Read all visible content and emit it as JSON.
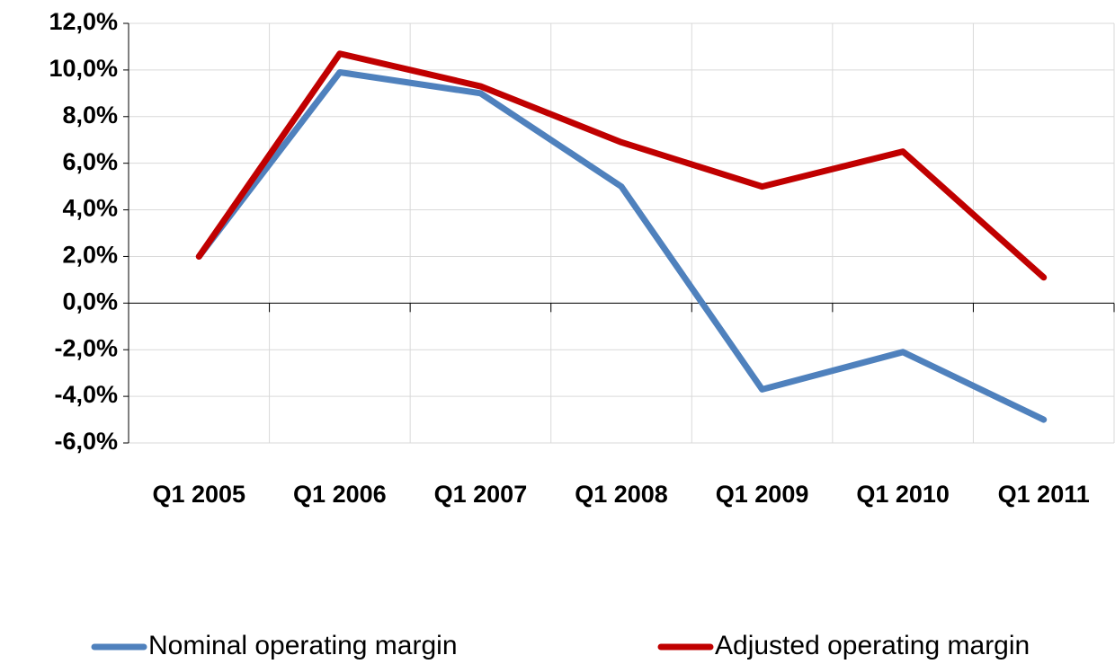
{
  "chart_data": {
    "type": "line",
    "categories": [
      "Q1 2005",
      "Q1 2006",
      "Q1 2007",
      "Q1 2008",
      "Q1 2009",
      "Q1 2010",
      "Q1 2011"
    ],
    "series": [
      {
        "name": "Nominal operating margin",
        "color": "#4f81bd",
        "values": [
          2.0,
          9.9,
          9.0,
          5.0,
          -3.7,
          -2.1,
          -5.0
        ]
      },
      {
        "name": "Adjusted operating margin",
        "color": "#c00000",
        "values": [
          2.0,
          10.7,
          9.3,
          6.9,
          5.0,
          6.5,
          1.1
        ]
      }
    ],
    "ylim": [
      -6,
      12
    ],
    "yticks": [
      {
        "value": -6,
        "label": "-6,0%"
      },
      {
        "value": -4,
        "label": "-4,0%"
      },
      {
        "value": -2,
        "label": "-2,0%"
      },
      {
        "value": 0,
        "label": "0,0%"
      },
      {
        "value": 2,
        "label": "2,0%"
      },
      {
        "value": 4,
        "label": "4,0%"
      },
      {
        "value": 6,
        "label": "6,0%"
      },
      {
        "value": 8,
        "label": "8,0%"
      },
      {
        "value": 10,
        "label": "10,0%"
      },
      {
        "value": 12,
        "label": "12,0%"
      }
    ],
    "grid": true,
    "legend": "bottom"
  }
}
